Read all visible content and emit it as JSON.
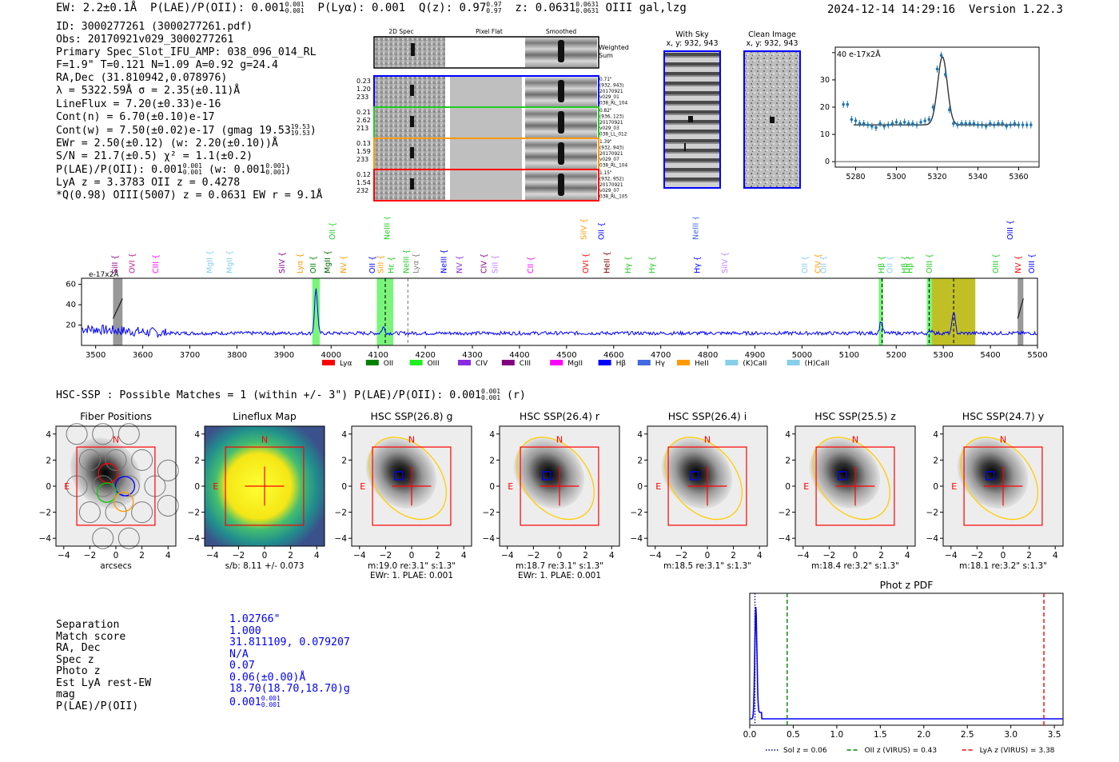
{
  "header": {
    "ew": "EW: 2.2±0.1Å",
    "plae": "P(LAE)/P(OII): 0.001",
    "plae_hi": "0.001",
    "plae_lo": "0.001",
    "plya": "P(Lyα): 0.001",
    "qz": "Q(z): 0.97",
    "qz_hi": "0.97",
    "qz_lo": "0.97",
    "z": "z: 0.0631",
    "z_hi": "0.0631",
    "z_lo": "0.0631",
    "z_tail": "OIII  gal,lzg",
    "timestamp": "2024-12-14 14:29:16",
    "version": "Version 1.22.3"
  },
  "info": {
    "id": "ID: 3000277261 (3000277261.pdf)",
    "obs": "Obs: 20170921v029_3000277261",
    "primary": "Primary Spec_Slot_IFU_AMP: 038_096_014_RL",
    "f": "F=1.9\"  T=0.121  N=1.09  A=0.92  g=24.4",
    "radec": "RA,Dec (31.810942,0.078976)",
    "lambda": "λ = 5322.59Å  σ = 2.35(±0.11)Å",
    "lineflux": "LineFlux = 7.20(±0.33)e-16",
    "contn": "Cont(n) = 6.70(±0.10)e-17",
    "contw": "Cont(w) = 7.50(±0.02)e-17 (gmag 19.53",
    "contw_hi": "19.53",
    "contw_lo": "19.53",
    "ewr": "EWr = 2.50(±0.12) (w: 2.20(±0.10))Å",
    "sn": "S/N = 21.7(±0.5)  χ² = 1.1(±0.2)",
    "plae_a": "P(LAE)/P(OII): 0.001",
    "plae_a_hi": "0.001",
    "plae_a_lo": "0.001",
    "plae_b": "(w: 0.001",
    "plae_b_hi": "0.001",
    "plae_b_lo": "0.001",
    "lya_z": "LyA z = 3.3783  OII z = 0.4278",
    "q_line": "*Q(0.98) OIII(5007) z = 0.0631  EW r = 9.1Å"
  },
  "spec_panel": {
    "col_2d": "2D Spec",
    "col_flat": "Pixel Flat",
    "col_smooth": "Smoothed",
    "weighted": "Weighted Sum",
    "rows": [
      {
        "color": "#0000ff",
        "left": [
          "0.23",
          "1.20",
          "233"
        ],
        "right": [
          "0.71\"",
          "(932, 943)",
          "20170921",
          "v029_01",
          "038_RL_104"
        ]
      },
      {
        "color": "#22cc22",
        "left": [
          "0.21",
          "2.62",
          "213"
        ],
        "right": [
          "0.82\"",
          "(936, 123)",
          "20170921",
          "v029_03",
          "038_LL_012"
        ]
      },
      {
        "color": "#ff9900",
        "left": [
          "0.13",
          "1.59",
          "233"
        ],
        "right": [
          "1.39\"",
          "(932, 943)",
          "20170921",
          "v029_07",
          "038_RL_104"
        ]
      },
      {
        "color": "#ff0000",
        "left": [
          "0.12",
          "1.54",
          "232"
        ],
        "right": [
          "1.15\"",
          "(932, 952)",
          "20170921",
          "v029_07",
          "038_RL_105"
        ]
      }
    ]
  },
  "cutouts": {
    "with_sky": "With Sky",
    "with_sky_xy": "x, y: 932, 943",
    "clean": "Clean Image",
    "clean_xy": "x, y: 932, 943"
  },
  "colors": {
    "blue_line": "#0000ff",
    "fit_line": "#333333",
    "data_points": "#1f77b4",
    "green_band": "#22ee22",
    "olive_band": "#b5b500",
    "plot_red": "#ff0000",
    "pdf_green": "#008000",
    "ellipse": "#ffcc00"
  },
  "chart_data": [
    {
      "type": "scatter",
      "name": "zoom-line-fit",
      "ylabel": "e-17x2Å",
      "xlim": [
        5270,
        5370
      ],
      "ylim": [
        -2,
        42
      ],
      "xticks": [
        5280,
        5300,
        5320,
        5340,
        5360
      ],
      "yticks": [
        0,
        10,
        20,
        30,
        40
      ],
      "x": [
        5274,
        5276,
        5278,
        5280,
        5282,
        5284,
        5286,
        5288,
        5290,
        5292,
        5294,
        5296,
        5298,
        5300,
        5302,
        5304,
        5306,
        5308,
        5310,
        5312,
        5314,
        5316,
        5318,
        5320,
        5322,
        5324,
        5326,
        5328,
        5330,
        5332,
        5334,
        5336,
        5338,
        5340,
        5342,
        5344,
        5346,
        5348,
        5350,
        5352,
        5354,
        5356,
        5358,
        5360,
        5362,
        5364,
        5366
      ],
      "y": [
        21,
        21,
        15.5,
        15,
        14,
        14,
        13.5,
        13,
        12.5,
        14,
        13,
        13.5,
        14,
        14.5,
        14,
        14.5,
        14,
        14,
        13.5,
        14.5,
        15,
        15.5,
        20,
        34,
        39,
        32,
        19,
        14,
        13.5,
        14,
        14,
        14,
        14,
        13.5,
        13.5,
        13,
        14,
        13.5,
        14,
        14,
        13,
        13.5,
        14,
        13.5,
        13.5,
        13.5,
        13.5
      ],
      "fit": {
        "center": 5322.59,
        "sigma": 2.35,
        "peak": 25,
        "baseline": 13.5
      }
    },
    {
      "type": "line",
      "name": "full-spectrum",
      "ylabel": "e-17x2Å",
      "xlim": [
        3470,
        5500
      ],
      "ylim": [
        0,
        66
      ],
      "xticks": [
        3500,
        3600,
        3700,
        3800,
        3900,
        4000,
        4100,
        4200,
        4300,
        4400,
        4500,
        4600,
        4700,
        4800,
        4900,
        5000,
        5100,
        5200,
        5300,
        5400,
        5500
      ],
      "yticks": [
        20,
        40,
        60
      ],
      "peaks": [
        {
          "x": 3968,
          "height": 44
        },
        {
          "x": 4111,
          "height": 6
        },
        {
          "x": 5168,
          "height": 12
        },
        {
          "x": 5322,
          "height": 22
        },
        {
          "x": 5276,
          "height": 3
        }
      ],
      "baseline": 12,
      "bands": [
        {
          "from": 3960,
          "to": 3976,
          "kind": "green"
        },
        {
          "from": 4097,
          "to": 4132,
          "kind": "green"
        },
        {
          "from": 5163,
          "to": 5172,
          "kind": "green"
        },
        {
          "from": 5265,
          "to": 5276,
          "kind": "green"
        },
        {
          "from": 5276,
          "to": 5368,
          "kind": "olive"
        },
        {
          "from": 3537,
          "to": 3557,
          "kind": "gray"
        },
        {
          "from": 5458,
          "to": 5470,
          "kind": "gray"
        }
      ],
      "dashed_lines": [
        {
          "x": 4115,
          "color": "#000000"
        },
        {
          "x": 4163,
          "color": "#808080"
        },
        {
          "x": 5170,
          "color": "#000000"
        },
        {
          "x": 5270,
          "color": "#000000"
        },
        {
          "x": 5322,
          "color": "#000000"
        }
      ],
      "line_labels": [
        {
          "text": "SiII",
          "x": 3541,
          "row": 0,
          "color": "#8b008b"
        },
        {
          "text": "OVI",
          "x": 3578,
          "row": 0,
          "color": "#c71585"
        },
        {
          "text": "CIII",
          "x": 3628,
          "row": 0,
          "color": "#ff00ff"
        },
        {
          "text": "MgII",
          "x": 3742,
          "row": 0,
          "color": "#87ceeb"
        },
        {
          "text": "MgII",
          "x": 3785,
          "row": 0,
          "color": "#87ceeb"
        },
        {
          "text": "SiIV",
          "x": 3896,
          "row": 0,
          "color": "#8b008b"
        },
        {
          "text": "Lyα",
          "x": 3934,
          "row": 0,
          "color": "#ff9900"
        },
        {
          "text": "OII",
          "x": 3962,
          "row": 0,
          "color": "#008000"
        },
        {
          "text": "MgII",
          "x": 3993,
          "row": 0,
          "color": "#006400"
        },
        {
          "text": "NV",
          "x": 4027,
          "row": 0,
          "color": "#ff9900"
        },
        {
          "text": "OII",
          "x": 4003,
          "row": 1,
          "color": "#22cc22"
        },
        {
          "text": "OII",
          "x": 4088,
          "row": 0,
          "color": "#0000ff"
        },
        {
          "text": "SiII",
          "x": 4106,
          "row": 0,
          "color": "#ff9900"
        },
        {
          "text": "Hε",
          "x": 4128,
          "row": 0,
          "color": "#22cc22"
        },
        {
          "text": "NeIII",
          "x": 4119,
          "row": 1,
          "color": "#22cc22"
        },
        {
          "text": "NeIII",
          "x": 4160,
          "row": 0,
          "color": "#22cc22"
        },
        {
          "text": "Lyα",
          "x": 4180,
          "row": 0,
          "color": "#808080"
        },
        {
          "text": "NeIII",
          "x": 4240,
          "row": 0,
          "color": "#0000ff"
        },
        {
          "text": "NV",
          "x": 4273,
          "row": 0,
          "color": "#8a2be2"
        },
        {
          "text": "CIV",
          "x": 4325,
          "row": 0,
          "color": "#800080"
        },
        {
          "text": "SiII",
          "x": 4348,
          "row": 0,
          "color": "#c080ff"
        },
        {
          "text": "CII",
          "x": 4424,
          "row": 0,
          "color": "#ff00ff"
        },
        {
          "text": "OVI",
          "x": 4541,
          "row": 0,
          "color": "#ff0000"
        },
        {
          "text": "SiIV",
          "x": 4537,
          "row": 1,
          "color": "#ff9900"
        },
        {
          "text": "OII",
          "x": 4574,
          "row": 1,
          "color": "#0000ff"
        },
        {
          "text": "HeII",
          "x": 4586,
          "row": 0,
          "color": "#800000"
        },
        {
          "text": "Hγ",
          "x": 4631,
          "row": 0,
          "color": "#22cc22"
        },
        {
          "text": "Hγ",
          "x": 4682,
          "row": 0,
          "color": "#22cc22"
        },
        {
          "text": "NeIII",
          "x": 4774,
          "row": 1,
          "color": "#4169e1"
        },
        {
          "text": "Hγ",
          "x": 4778,
          "row": 0,
          "color": "#0000ff"
        },
        {
          "text": "SiIV",
          "x": 4836,
          "row": 0,
          "color": "#c080ff"
        },
        {
          "text": "OII",
          "x": 5006,
          "row": 0,
          "color": "#87ceeb"
        },
        {
          "text": "CIV",
          "x": 5034,
          "row": 0,
          "color": "#ff9900"
        },
        {
          "text": "OII",
          "x": 5046,
          "row": 0,
          "color": "#87ceeb"
        },
        {
          "text": "Hβ",
          "x": 5169,
          "row": 0,
          "color": "#22cc22"
        },
        {
          "text": "OII",
          "x": 5187,
          "row": 0,
          "color": "#87ceeb"
        },
        {
          "text": "Hβ",
          "x": 5218,
          "row": 0,
          "color": "#22cc22"
        },
        {
          "text": "Hβ",
          "x": 5229,
          "row": 0,
          "color": "#22cc22"
        },
        {
          "text": "OIII",
          "x": 5271,
          "row": 0,
          "color": "#22cc22"
        },
        {
          "text": "OIII",
          "x": 5412,
          "row": 0,
          "color": "#22cc22"
        },
        {
          "text": "OIII",
          "x": 5442,
          "row": 1,
          "color": "#0000ff"
        },
        {
          "text": "NV",
          "x": 5459,
          "row": 0,
          "color": "#ff0000"
        },
        {
          "text": "OIII",
          "x": 5488,
          "row": 0,
          "color": "#0000ff"
        }
      ],
      "legend": [
        {
          "label": "Lyα",
          "color": "#ff0000"
        },
        {
          "label": "OII",
          "color": "#008000"
        },
        {
          "label": "OIII",
          "color": "#22ee22"
        },
        {
          "label": "CIV",
          "color": "#8a2be2"
        },
        {
          "label": "CIII",
          "color": "#800080"
        },
        {
          "label": "MgII",
          "color": "#ff00ff"
        },
        {
          "label": "Hβ",
          "color": "#0000ff"
        },
        {
          "label": "Hγ",
          "color": "#4169e1"
        },
        {
          "label": "HeII",
          "color": "#ff9900"
        },
        {
          "label": "(K)CaII",
          "color": "#87ceeb"
        },
        {
          "label": "(H)CaII",
          "color": "#87ceeb"
        }
      ]
    },
    {
      "type": "line",
      "name": "phot-z-pdf",
      "title": "Phot z PDF",
      "xlim": [
        0,
        3.6
      ],
      "xticks": [
        0.0,
        0.5,
        1.0,
        1.5,
        2.0,
        2.5,
        3.0,
        3.5
      ],
      "xtick_labels": [
        "0.0",
        "0.5",
        "1.0",
        "1.5",
        "2.0",
        "2.5",
        "3.0",
        "3.5"
      ],
      "pdf_peak": 0.07,
      "markers": [
        {
          "label": "Sol z = 0.06",
          "x": 0.06,
          "color": "#00008b",
          "style": "dotted"
        },
        {
          "label": "OII z (VIRUS) = 0.43",
          "x": 0.43,
          "color": "#008000",
          "style": "dashed"
        },
        {
          "label": "LyA z (VIRUS) = 3.38",
          "x": 3.38,
          "color": "#ff0000",
          "style": "dashed"
        }
      ]
    }
  ],
  "hsc": {
    "title": "HSC-SSP : Possible Matches = 1 (within +/- 3\")  P(LAE)/P(OII): 0.001",
    "title_hi": "0.001",
    "title_lo": "0.001",
    "title_tail": "(r)",
    "ticks": [
      "−4",
      "−2",
      "0",
      "2",
      "4"
    ],
    "ytick_labels": [
      "4",
      "2",
      "0",
      "−2",
      "−4"
    ],
    "north": "N",
    "east": "E",
    "panels": [
      {
        "title": "Fiber Positions",
        "cap1": "arcsecs",
        "cap2": ""
      },
      {
        "title": "Lineflux Map",
        "cap1": "s/b: 8.11 +/- 0.073",
        "cap2": ""
      },
      {
        "title": "HSC SSP(26.8) g",
        "cap1": "m:19.0  re:3.1\"  s:1.3\"",
        "cap2": "EWr: 1. PLAE: 0.001"
      },
      {
        "title": "HSC SSP(26.4) r",
        "cap1": "m:18.7  re:3.1\"  s:1.3\"",
        "cap2": "EWr: 1. PLAE: 0.001"
      },
      {
        "title": "HSC SSP(26.4) i",
        "cap1": "m:18.5  re:3.1\"  s:1.3\"",
        "cap2": ""
      },
      {
        "title": "HSC SSP(25.5) z",
        "cap1": "m:18.4  re:3.2\"  s:1.3\"",
        "cap2": ""
      },
      {
        "title": "HSC SSP(24.7) y",
        "cap1": "m:18.1  re:3.2\"  s:1.3\"",
        "cap2": ""
      }
    ]
  },
  "match": {
    "labels": [
      "Separation",
      "Match score",
      "RA, Dec",
      "Spec z",
      "Photo z",
      "Est LyA rest-EW",
      "mag",
      "P(LAE)/P(OII)"
    ],
    "values": [
      "1.02766\"",
      "1.000",
      "31.811109, 0.079207",
      "N/A",
      "0.07",
      "0.06(±0.00)Å",
      "18.70(18.70,18.70)g",
      "0.001"
    ],
    "plae_hi": "0.001",
    "plae_lo": "0.001"
  }
}
